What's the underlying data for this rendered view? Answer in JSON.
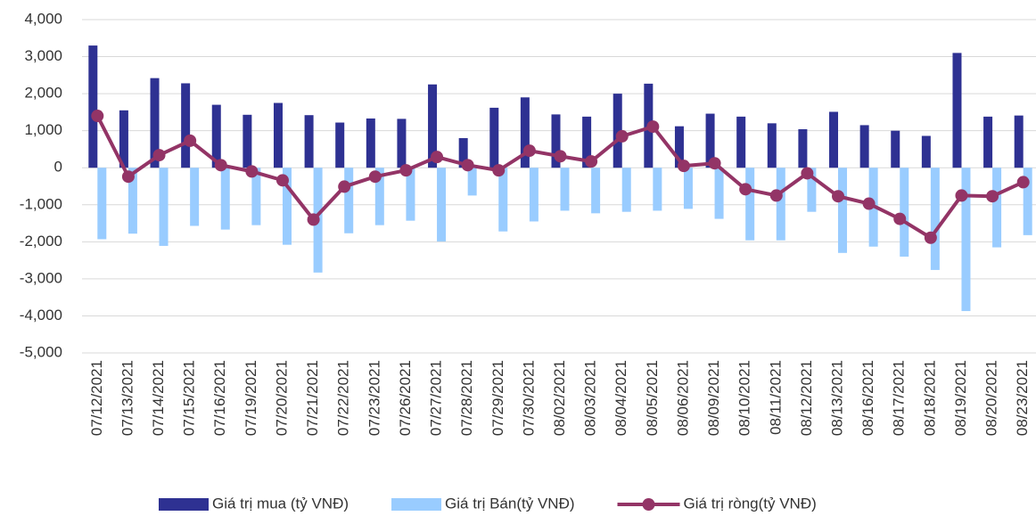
{
  "chart_data": {
    "type": "bar_line",
    "categories": [
      "07/12/2021",
      "07/13/2021",
      "07/14/2021",
      "07/15/2021",
      "07/16/2021",
      "07/19/2021",
      "07/20/2021",
      "07/21/2021",
      "07/22/2021",
      "07/23/2021",
      "07/26/2021",
      "07/27/2021",
      "07/28/2021",
      "07/29/2021",
      "07/30/2021",
      "08/02/2021",
      "08/03/2021",
      "08/04/2021",
      "08/05/2021",
      "08/06/2021",
      "08/09/2021",
      "08/10/2021",
      "08/11/2021",
      "08/12/2021",
      "08/13/2021",
      "08/16/2021",
      "08/17/2021",
      "08/18/2021",
      "08/19/2021",
      "08/20/2021",
      "08/23/2021"
    ],
    "series": [
      {
        "name": "Giá trị mua (tỷ VNĐ)",
        "type": "bar",
        "color": "#2e3192",
        "values": [
          3300,
          1550,
          2420,
          2280,
          1700,
          1430,
          1750,
          1420,
          1220,
          1330,
          1320,
          2250,
          800,
          1620,
          1900,
          1440,
          1380,
          2000,
          2270,
          1120,
          1460,
          1380,
          1200,
          1040,
          1510,
          1150,
          1000,
          860,
          3100,
          1380,
          1410
        ]
      },
      {
        "name": "Giá trị Bán(tỷ VNĐ)",
        "type": "bar",
        "color": "#99ccff",
        "values": [
          -1930,
          -1780,
          -2110,
          -1570,
          -1670,
          -1550,
          -2080,
          -2830,
          -1770,
          -1550,
          -1430,
          -1990,
          -750,
          -1720,
          -1450,
          -1160,
          -1230,
          -1190,
          -1160,
          -1110,
          -1380,
          -1960,
          -1960,
          -1190,
          -2300,
          -2130,
          -2400,
          -2760,
          -3870,
          -2150,
          -1820
        ]
      },
      {
        "name": "Giá trị ròng(tỷ VNĐ)",
        "type": "line",
        "color": "#933466",
        "values": [
          1400,
          -240,
          340,
          730,
          70,
          -100,
          -340,
          -1400,
          -510,
          -240,
          -70,
          290,
          70,
          -70,
          460,
          310,
          170,
          850,
          1110,
          50,
          120,
          -580,
          -750,
          -150,
          -770,
          -970,
          -1380,
          -1890,
          -750,
          -770,
          -390
        ]
      }
    ],
    "ylim": [
      -5000,
      4000
    ],
    "yticks": [
      {
        "value": -5000,
        "label": "-5,000"
      },
      {
        "value": -4000,
        "label": "-4,000"
      },
      {
        "value": -3000,
        "label": "-3,000"
      },
      {
        "value": -2000,
        "label": "-2,000"
      },
      {
        "value": -1000,
        "label": "-1,000"
      },
      0,
      {
        "value": 1000,
        "label": "1,000"
      },
      {
        "value": 2000,
        "label": "2,000"
      },
      {
        "value": 3000,
        "label": "3,000"
      },
      {
        "value": 4000,
        "label": "4,000"
      }
    ],
    "grid": true
  }
}
